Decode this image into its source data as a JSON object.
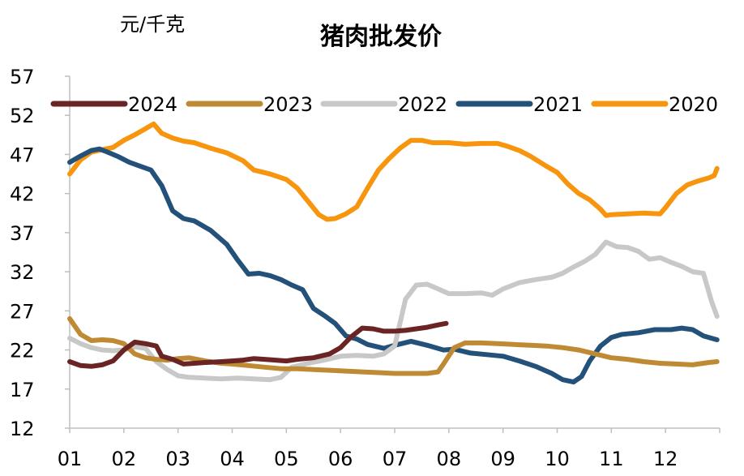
{
  "chart_data": {
    "type": "line",
    "title": "猪肉批发价",
    "ylabel": "元/千克",
    "xlabel": "",
    "ylim": [
      12,
      57
    ],
    "yticks": [
      57,
      52,
      47,
      42,
      37,
      32,
      27,
      22,
      17,
      12
    ],
    "xlim": [
      1,
      13
    ],
    "xticks": [
      1,
      2,
      3,
      4,
      5,
      6,
      7,
      8,
      9,
      10,
      11,
      12
    ],
    "xtick_labels": [
      "01",
      "02",
      "03",
      "04",
      "05",
      "06",
      "07",
      "08",
      "09",
      "10",
      "11",
      "12"
    ],
    "grid": false,
    "legend_placement": "top",
    "series": [
      {
        "name": "2024",
        "color": "#6B2424",
        "x": [
          1.0,
          1.2,
          1.4,
          1.6,
          1.8,
          2.0,
          2.2,
          2.4,
          2.6,
          2.7,
          2.9,
          3.1,
          3.3,
          3.5,
          3.8,
          4.0,
          4.2,
          4.4,
          4.6,
          4.8,
          5.0,
          5.2,
          5.5,
          5.8,
          6.0,
          6.2,
          6.4,
          6.6,
          6.8,
          7.0,
          7.2,
          7.4,
          7.6,
          7.8,
          7.95
        ],
        "y": [
          20.5,
          20.0,
          19.9,
          20.1,
          20.6,
          22.0,
          23.0,
          22.8,
          22.5,
          21.2,
          20.8,
          20.2,
          20.3,
          20.4,
          20.5,
          20.6,
          20.7,
          20.9,
          20.8,
          20.7,
          20.6,
          20.8,
          21.0,
          21.5,
          22.3,
          23.7,
          24.8,
          24.7,
          24.4,
          24.4,
          24.5,
          24.7,
          24.9,
          25.2,
          25.4
        ]
      },
      {
        "name": "2023",
        "color": "#BF8A34",
        "x": [
          1.0,
          1.2,
          1.4,
          1.6,
          1.8,
          2.0,
          2.2,
          2.4,
          2.6,
          2.8,
          3.0,
          3.2,
          3.5,
          3.8,
          4.0,
          4.3,
          4.6,
          4.9,
          5.2,
          5.5,
          5.8,
          6.1,
          6.4,
          6.7,
          7.0,
          7.3,
          7.6,
          7.8,
          7.9,
          8.1,
          8.3,
          8.6,
          8.9,
          9.2,
          9.5,
          9.8,
          10.1,
          10.4,
          10.7,
          11.0,
          11.3,
          11.6,
          11.9,
          12.2,
          12.5,
          12.8,
          12.95
        ],
        "y": [
          26.0,
          24.0,
          23.2,
          23.3,
          23.2,
          22.8,
          21.5,
          21.0,
          20.8,
          20.7,
          20.9,
          21.0,
          20.6,
          20.3,
          20.2,
          20.0,
          19.8,
          19.6,
          19.6,
          19.5,
          19.4,
          19.3,
          19.2,
          19.1,
          19.0,
          19.0,
          19.0,
          19.2,
          20.2,
          22.3,
          22.9,
          22.9,
          22.8,
          22.7,
          22.6,
          22.5,
          22.3,
          22.0,
          21.5,
          21.0,
          20.8,
          20.5,
          20.3,
          20.2,
          20.1,
          20.4,
          20.5
        ]
      },
      {
        "name": "2022",
        "color": "#C8C8C8",
        "x": [
          1.0,
          1.2,
          1.4,
          1.6,
          1.8,
          2.0,
          2.2,
          2.4,
          2.6,
          2.8,
          3.0,
          3.2,
          3.5,
          3.8,
          4.1,
          4.4,
          4.7,
          4.9,
          5.1,
          5.4,
          5.7,
          6.0,
          6.3,
          6.6,
          6.8,
          7.0,
          7.1,
          7.2,
          7.4,
          7.6,
          7.8,
          8.0,
          8.3,
          8.6,
          8.8,
          9.0,
          9.3,
          9.6,
          9.9,
          10.1,
          10.3,
          10.5,
          10.7,
          10.9,
          11.1,
          11.3,
          11.5,
          11.7,
          11.9,
          12.1,
          12.3,
          12.5,
          12.7,
          12.85,
          12.95
        ],
        "y": [
          23.5,
          22.8,
          22.3,
          22.0,
          21.9,
          22.0,
          22.4,
          22.2,
          20.5,
          19.5,
          18.7,
          18.5,
          18.4,
          18.3,
          18.4,
          18.3,
          18.2,
          18.5,
          19.8,
          20.3,
          20.7,
          21.2,
          21.3,
          21.2,
          21.5,
          22.5,
          25.5,
          28.5,
          30.3,
          30.4,
          29.8,
          29.2,
          29.2,
          29.3,
          29.0,
          29.8,
          30.6,
          31.0,
          31.3,
          31.8,
          32.6,
          33.3,
          34.2,
          35.8,
          35.2,
          35.1,
          34.6,
          33.6,
          33.8,
          33.2,
          32.7,
          32.0,
          31.8,
          28.2,
          26.3
        ]
      },
      {
        "name": "2021",
        "color": "#24517A",
        "x": [
          1.0,
          1.2,
          1.4,
          1.55,
          1.7,
          1.9,
          2.1,
          2.3,
          2.5,
          2.7,
          2.9,
          3.1,
          3.3,
          3.6,
          3.9,
          4.1,
          4.3,
          4.5,
          4.7,
          4.9,
          5.1,
          5.3,
          5.5,
          5.7,
          5.9,
          6.1,
          6.3,
          6.5,
          6.8,
          7.0,
          7.3,
          7.6,
          7.9,
          8.1,
          8.4,
          8.7,
          9.0,
          9.3,
          9.6,
          9.9,
          10.1,
          10.3,
          10.45,
          10.6,
          10.8,
          11.0,
          11.2,
          11.5,
          11.8,
          12.1,
          12.3,
          12.5,
          12.7,
          12.95
        ],
        "y": [
          46.0,
          46.8,
          47.5,
          47.7,
          47.3,
          46.7,
          46.0,
          45.5,
          45.0,
          43.0,
          39.8,
          38.8,
          38.5,
          37.3,
          35.5,
          33.5,
          31.7,
          31.8,
          31.5,
          31.0,
          30.3,
          29.7,
          27.3,
          26.4,
          25.4,
          23.8,
          23.4,
          22.7,
          22.2,
          22.6,
          23.1,
          22.6,
          22.0,
          22.1,
          21.6,
          21.4,
          21.2,
          20.6,
          19.9,
          19.0,
          18.2,
          17.9,
          18.6,
          20.6,
          22.5,
          23.6,
          24.0,
          24.2,
          24.6,
          24.6,
          24.8,
          24.6,
          23.8,
          23.3
        ]
      },
      {
        "name": "2020",
        "color": "#F7960E",
        "x": [
          1.0,
          1.2,
          1.4,
          1.6,
          1.8,
          2.0,
          2.2,
          2.4,
          2.55,
          2.7,
          2.9,
          3.1,
          3.3,
          3.6,
          3.9,
          4.2,
          4.4,
          4.7,
          5.0,
          5.2,
          5.4,
          5.6,
          5.75,
          5.9,
          6.1,
          6.3,
          6.5,
          6.7,
          6.9,
          7.1,
          7.3,
          7.5,
          7.7,
          8.0,
          8.3,
          8.6,
          8.9,
          9.1,
          9.3,
          9.5,
          9.8,
          10.0,
          10.2,
          10.4,
          10.6,
          10.8,
          10.9,
          11.0,
          11.3,
          11.6,
          11.9,
          12.0,
          12.2,
          12.4,
          12.6,
          12.8,
          12.9,
          12.95
        ],
        "y": [
          44.5,
          46.3,
          47.3,
          47.6,
          47.9,
          48.8,
          49.5,
          50.3,
          50.9,
          49.7,
          49.1,
          48.7,
          48.5,
          47.8,
          47.2,
          46.2,
          45.0,
          44.5,
          43.8,
          42.7,
          41.0,
          39.3,
          38.7,
          38.8,
          39.4,
          40.3,
          42.7,
          45.0,
          46.5,
          47.8,
          48.8,
          48.8,
          48.5,
          48.5,
          48.3,
          48.4,
          48.4,
          48.0,
          47.5,
          46.8,
          45.5,
          44.7,
          43.2,
          42.0,
          41.2,
          40.0,
          39.2,
          39.3,
          39.4,
          39.5,
          39.4,
          40.2,
          42.0,
          43.1,
          43.6,
          44.0,
          44.3,
          45.2
        ]
      }
    ]
  }
}
